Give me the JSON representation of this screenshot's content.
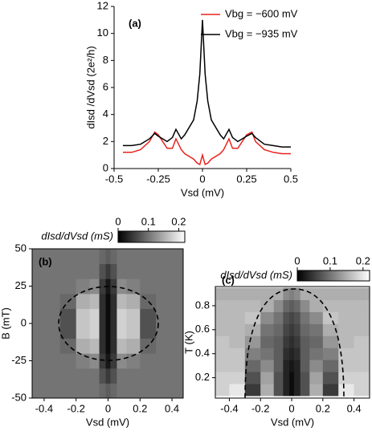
{
  "chart_data": [
    {
      "type": "line",
      "label": "(a)",
      "xlabel": "Vsd (mV)",
      "ylabel": "dIsd /dVsd (2e²/h)",
      "x": [
        -0.45,
        -0.4,
        -0.35,
        -0.3,
        -0.27,
        -0.25,
        -0.2,
        -0.17,
        -0.15,
        -0.12,
        -0.1,
        -0.05,
        -0.03,
        -0.015,
        0,
        0.015,
        0.03,
        0.05,
        0.1,
        0.12,
        0.15,
        0.17,
        0.2,
        0.25,
        0.28,
        0.3,
        0.35,
        0.4,
        0.45,
        0.5
      ],
      "series": [
        {
          "name": "Vbg = −600 mV",
          "color": "#e8231e",
          "values": [
            1.2,
            1.2,
            1.4,
            2.0,
            2.7,
            2.5,
            1.5,
            1.5,
            2.2,
            1.4,
            1.1,
            0.7,
            0.4,
            0.3,
            1.0,
            0.3,
            0.4,
            0.7,
            1.1,
            1.4,
            2.2,
            1.5,
            1.5,
            2.5,
            2.7,
            2.0,
            1.4,
            1.2,
            1.1,
            1.1
          ]
        },
        {
          "name": "Vbg = −935 mV",
          "color": "#000000",
          "values": [
            1.7,
            1.7,
            1.8,
            2.2,
            2.6,
            2.4,
            2.0,
            2.3,
            2.9,
            2.2,
            2.5,
            3.6,
            5.0,
            7.0,
            11,
            7.0,
            5.0,
            3.6,
            2.5,
            2.2,
            2.9,
            2.3,
            2.0,
            2.4,
            2.6,
            2.3,
            1.8,
            1.7,
            1.6,
            1.6
          ]
        }
      ],
      "xlim": [
        -0.5,
        0.5
      ],
      "xticks": [
        -0.5,
        -0.25,
        0,
        0.25,
        0.5
      ],
      "ylim": [
        0,
        12
      ],
      "yticks": [
        0,
        2,
        4,
        6,
        8,
        10,
        12
      ],
      "legend": "upper right"
    },
    {
      "type": "heatmap",
      "label": "(b)",
      "xlabel": "Vsd (mV)",
      "ylabel": "B (mT)",
      "colorbar_label": "dIsd/dVsd (mS)",
      "x": [
        -0.45,
        -0.35,
        -0.25,
        -0.15,
        -0.08,
        -0.03,
        0,
        0.03,
        0.08,
        0.15,
        0.25,
        0.35,
        0.45
      ],
      "y": [
        -45,
        -35,
        -25,
        -15,
        -5,
        5,
        15,
        25,
        35,
        45
      ],
      "values": [
        [
          0.1,
          0.1,
          0.1,
          0.1,
          0.1,
          0.09,
          0.08,
          0.09,
          0.1,
          0.1,
          0.1,
          0.1,
          0.1
        ],
        [
          0.1,
          0.1,
          0.1,
          0.1,
          0.1,
          0.07,
          0.05,
          0.07,
          0.1,
          0.1,
          0.1,
          0.1,
          0.1
        ],
        [
          0.1,
          0.1,
          0.1,
          0.11,
          0.12,
          0.05,
          0.02,
          0.05,
          0.12,
          0.11,
          0.1,
          0.1,
          0.1
        ],
        [
          0.1,
          0.1,
          0.09,
          0.15,
          0.16,
          0.04,
          0.01,
          0.04,
          0.16,
          0.15,
          0.09,
          0.1,
          0.1
        ],
        [
          0.1,
          0.1,
          0.07,
          0.17,
          0.18,
          0.04,
          0.01,
          0.04,
          0.18,
          0.17,
          0.07,
          0.1,
          0.1
        ],
        [
          0.1,
          0.1,
          0.07,
          0.17,
          0.18,
          0.04,
          0.01,
          0.04,
          0.18,
          0.17,
          0.07,
          0.1,
          0.1
        ],
        [
          0.1,
          0.1,
          0.09,
          0.15,
          0.16,
          0.04,
          0.01,
          0.04,
          0.16,
          0.15,
          0.09,
          0.1,
          0.1
        ],
        [
          0.1,
          0.1,
          0.1,
          0.11,
          0.12,
          0.05,
          0.02,
          0.05,
          0.12,
          0.11,
          0.1,
          0.1,
          0.1
        ],
        [
          0.1,
          0.1,
          0.1,
          0.1,
          0.1,
          0.07,
          0.05,
          0.07,
          0.1,
          0.1,
          0.1,
          0.1,
          0.1
        ],
        [
          0.1,
          0.1,
          0.1,
          0.1,
          0.1,
          0.09,
          0.08,
          0.09,
          0.1,
          0.1,
          0.1,
          0.1,
          0.1
        ]
      ],
      "xlim": [
        -0.475,
        0.47
      ],
      "xticks": [
        -0.4,
        -0.2,
        0,
        0.2,
        0.4
      ],
      "ylim": [
        -50,
        50
      ],
      "yticks": [
        -50,
        -25,
        0,
        25,
        50
      ],
      "clim": [
        0,
        0.22
      ],
      "cticks": [
        0,
        0.1,
        0.2
      ]
    },
    {
      "type": "heatmap",
      "label": "(c)",
      "xlabel": "Vsd (mV)",
      "ylabel": "T (K)",
      "colorbar_label": "dIsd/dVsd (mS)",
      "x": [
        -0.45,
        -0.35,
        -0.25,
        -0.15,
        -0.08,
        -0.03,
        0,
        0.03,
        0.08,
        0.15,
        0.25,
        0.35,
        0.45
      ],
      "y": [
        0.1,
        0.2,
        0.3,
        0.4,
        0.5,
        0.6,
        0.7,
        0.8,
        0.9
      ],
      "values": [
        [
          0.18,
          0.2,
          0.05,
          0.15,
          0.07,
          0.03,
          0.01,
          0.03,
          0.07,
          0.15,
          0.05,
          0.2,
          0.18
        ],
        [
          0.18,
          0.18,
          0.07,
          0.14,
          0.07,
          0.03,
          0.01,
          0.03,
          0.07,
          0.14,
          0.07,
          0.18,
          0.18
        ],
        [
          0.17,
          0.17,
          0.09,
          0.12,
          0.08,
          0.03,
          0.02,
          0.03,
          0.08,
          0.12,
          0.09,
          0.17,
          0.17
        ],
        [
          0.17,
          0.17,
          0.11,
          0.1,
          0.08,
          0.04,
          0.03,
          0.04,
          0.08,
          0.1,
          0.11,
          0.17,
          0.17
        ],
        [
          0.17,
          0.16,
          0.13,
          0.09,
          0.08,
          0.05,
          0.04,
          0.05,
          0.08,
          0.09,
          0.13,
          0.16,
          0.17
        ],
        [
          0.16,
          0.16,
          0.15,
          0.1,
          0.09,
          0.06,
          0.05,
          0.06,
          0.09,
          0.1,
          0.15,
          0.16,
          0.16
        ],
        [
          0.16,
          0.16,
          0.17,
          0.12,
          0.1,
          0.07,
          0.06,
          0.07,
          0.1,
          0.12,
          0.17,
          0.16,
          0.16
        ],
        [
          0.16,
          0.16,
          0.16,
          0.15,
          0.12,
          0.09,
          0.08,
          0.09,
          0.12,
          0.15,
          0.16,
          0.16,
          0.16
        ],
        [
          0.15,
          0.15,
          0.15,
          0.15,
          0.15,
          0.12,
          0.11,
          0.12,
          0.15,
          0.15,
          0.15,
          0.15,
          0.15
        ]
      ],
      "xlim": [
        -0.49,
        0.5
      ],
      "xticks": [
        -0.4,
        -0.2,
        0,
        0.2,
        0.4
      ],
      "ylim": [
        0.03,
        0.96
      ],
      "yticks": [
        0.2,
        0.4,
        0.6,
        0.8
      ],
      "clim": [
        0,
        0.22
      ],
      "cticks": [
        0,
        0.1,
        0.2
      ]
    }
  ]
}
